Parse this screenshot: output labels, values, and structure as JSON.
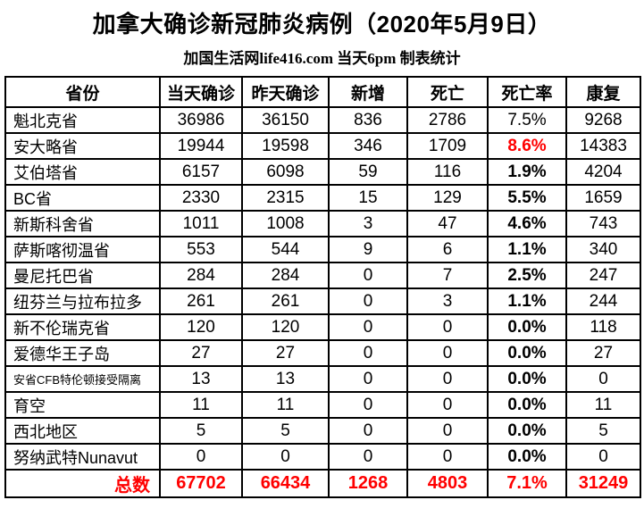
{
  "title": "加拿大确诊新冠肺炎病例（2020年5月9日）",
  "subtitle": "加国生活网life416.com 当天6pm 制表统计",
  "colors": {
    "accent_red": "#ff0000",
    "text": "#000000",
    "border": "#000000",
    "background": "#ffffff"
  },
  "table": {
    "headers": [
      "省份",
      "当天确诊",
      "昨天确诊",
      "新增",
      "死亡",
      "死亡率",
      "康复"
    ],
    "rows": [
      {
        "name": "魁北克省",
        "today": "36986",
        "yesterday": "36150",
        "added": "836",
        "deaths": "2786",
        "rate": "7.5%",
        "recovered": "9268",
        "rate_style": "normal",
        "name_small": false
      },
      {
        "name": "安大略省",
        "today": "19944",
        "yesterday": "19598",
        "added": "346",
        "deaths": "1709",
        "rate": "8.6%",
        "recovered": "14383",
        "rate_style": "red",
        "name_small": false
      },
      {
        "name": "艾伯塔省",
        "today": "6157",
        "yesterday": "6098",
        "added": "59",
        "deaths": "116",
        "rate": "1.9%",
        "recovered": "4204",
        "rate_style": "bold",
        "name_small": false
      },
      {
        "name": "BC省",
        "today": "2330",
        "yesterday": "2315",
        "added": "15",
        "deaths": "129",
        "rate": "5.5%",
        "recovered": "1659",
        "rate_style": "bold",
        "name_small": false
      },
      {
        "name": "新斯科舍省",
        "today": "1011",
        "yesterday": "1008",
        "added": "3",
        "deaths": "47",
        "rate": "4.6%",
        "recovered": "743",
        "rate_style": "bold",
        "name_small": false
      },
      {
        "name": "萨斯喀彻温省",
        "today": "553",
        "yesterday": "544",
        "added": "9",
        "deaths": "6",
        "rate": "1.1%",
        "recovered": "340",
        "rate_style": "bold",
        "name_small": false
      },
      {
        "name": "曼尼托巴省",
        "today": "284",
        "yesterday": "284",
        "added": "0",
        "deaths": "7",
        "rate": "2.5%",
        "recovered": "247",
        "rate_style": "bold",
        "name_small": false
      },
      {
        "name": "纽芬兰与拉布拉多",
        "today": "261",
        "yesterday": "261",
        "added": "0",
        "deaths": "3",
        "rate": "1.1%",
        "recovered": "244",
        "rate_style": "bold",
        "name_small": false
      },
      {
        "name": "新不伦瑞克省",
        "today": "120",
        "yesterday": "120",
        "added": "0",
        "deaths": "0",
        "rate": "0.0%",
        "recovered": "118",
        "rate_style": "bold",
        "name_small": false
      },
      {
        "name": "爱德华王子岛",
        "today": "27",
        "yesterday": "27",
        "added": "0",
        "deaths": "0",
        "rate": "0.0%",
        "recovered": "27",
        "rate_style": "bold",
        "name_small": false
      },
      {
        "name": "安省CFB特伦顿接受隔离",
        "today": "13",
        "yesterday": "13",
        "added": "0",
        "deaths": "0",
        "rate": "0.0%",
        "recovered": "0",
        "rate_style": "bold",
        "name_small": true
      },
      {
        "name": "育空",
        "today": "11",
        "yesterday": "11",
        "added": "0",
        "deaths": "0",
        "rate": "0.0%",
        "recovered": "11",
        "rate_style": "bold",
        "name_small": false
      },
      {
        "name": "西北地区",
        "today": "5",
        "yesterday": "5",
        "added": "0",
        "deaths": "0",
        "rate": "0.0%",
        "recovered": "5",
        "rate_style": "bold",
        "name_small": false
      },
      {
        "name": "努纳武特Nunavut",
        "today": "0",
        "yesterday": "0",
        "added": "0",
        "deaths": "0",
        "rate": "0.0%",
        "recovered": "0",
        "rate_style": "bold",
        "name_small": false
      }
    ],
    "total": {
      "label": "总数",
      "today": "67702",
      "yesterday": "66434",
      "added": "1268",
      "deaths": "4803",
      "rate": "7.1%",
      "recovered": "31249"
    }
  }
}
